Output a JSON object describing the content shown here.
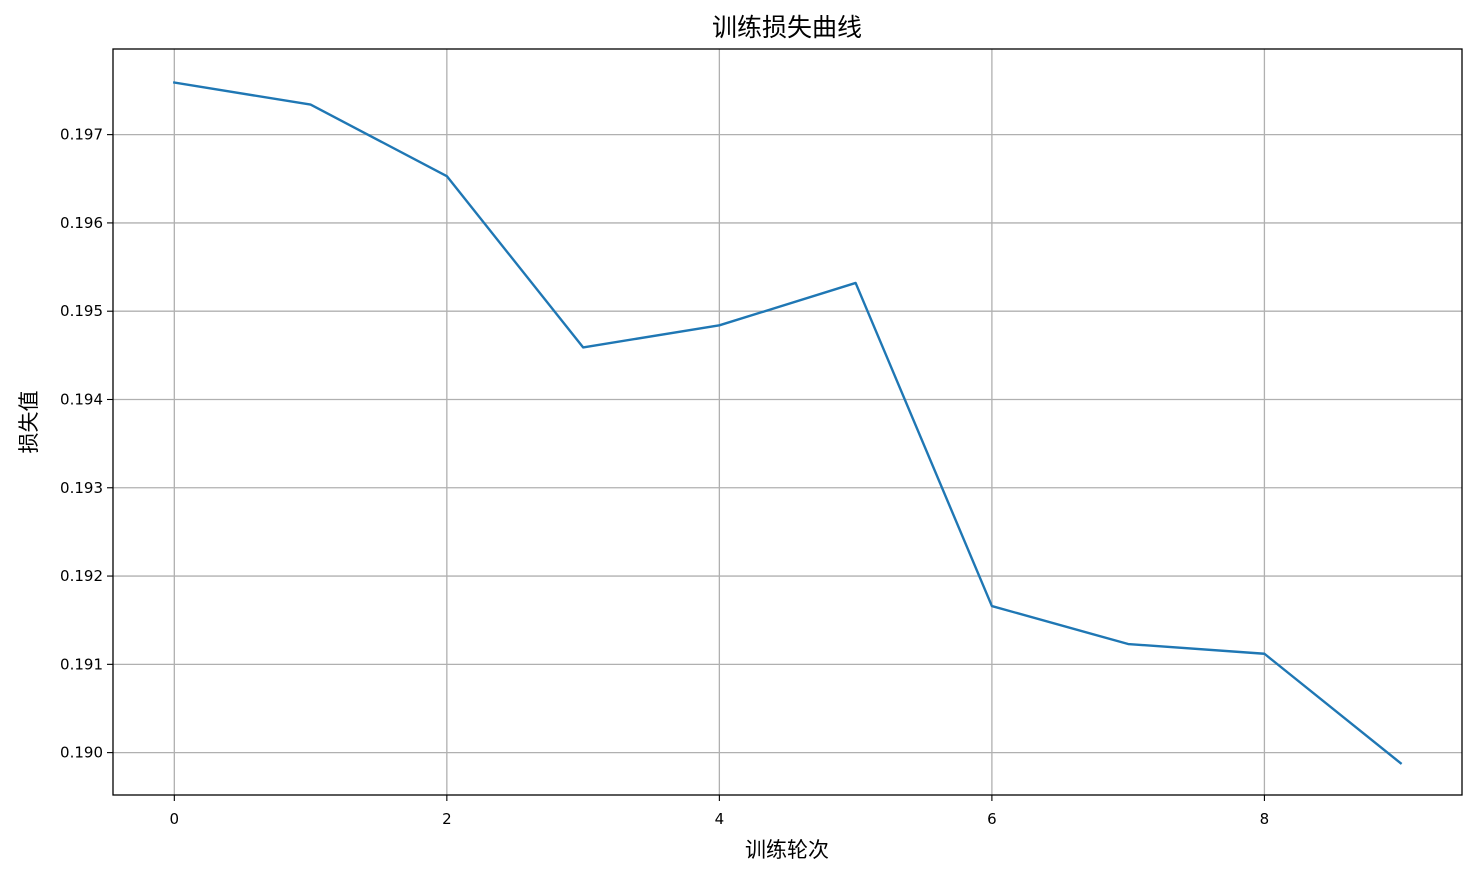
{
  "chart_data": {
    "type": "line",
    "title": "训练损失曲线",
    "xlabel": "训练轮次",
    "ylabel": "损失值",
    "x": [
      0,
      1,
      2,
      3,
      4,
      5,
      6,
      7,
      8,
      9
    ],
    "series": [
      {
        "values": [
          0.19759,
          0.19734,
          0.19653,
          0.19459,
          0.19484,
          0.19532,
          0.19166,
          0.19123,
          0.19112,
          0.18988
        ],
        "color": "#1f77b4"
      }
    ],
    "xticks": [
      "0",
      "2",
      "4",
      "6",
      "8"
    ],
    "yticks": [
      "0.190",
      "0.191",
      "0.192",
      "0.193",
      "0.194",
      "0.195",
      "0.196",
      "0.197"
    ],
    "xlim": [
      -0.45,
      9.45
    ],
    "ylim": [
      0.18952,
      0.19797
    ],
    "grid": true,
    "grid_color": "#b0b0b0"
  }
}
